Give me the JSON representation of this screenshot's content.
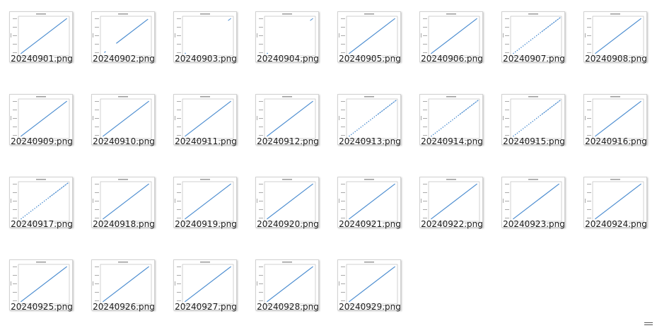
{
  "files": [
    {
      "name": "20240901.png",
      "pattern": "full"
    },
    {
      "name": "20240902.png",
      "pattern": "gap"
    },
    {
      "name": "20240903.png",
      "pattern": "sparse"
    },
    {
      "name": "20240904.png",
      "pattern": "sparse"
    },
    {
      "name": "20240905.png",
      "pattern": "full"
    },
    {
      "name": "20240906.png",
      "pattern": "full"
    },
    {
      "name": "20240907.png",
      "pattern": "dotted"
    },
    {
      "name": "20240908.png",
      "pattern": "full"
    },
    {
      "name": "20240909.png",
      "pattern": "full"
    },
    {
      "name": "20240910.png",
      "pattern": "full"
    },
    {
      "name": "20240911.png",
      "pattern": "full"
    },
    {
      "name": "20240912.png",
      "pattern": "full"
    },
    {
      "name": "20240913.png",
      "pattern": "dotted"
    },
    {
      "name": "20240914.png",
      "pattern": "dotted"
    },
    {
      "name": "20240915.png",
      "pattern": "dotted"
    },
    {
      "name": "20240916.png",
      "pattern": "full"
    },
    {
      "name": "20240917.png",
      "pattern": "dotted"
    },
    {
      "name": "20240918.png",
      "pattern": "full"
    },
    {
      "name": "20240919.png",
      "pattern": "full"
    },
    {
      "name": "20240920.png",
      "pattern": "full"
    },
    {
      "name": "20240921.png",
      "pattern": "full"
    },
    {
      "name": "20240922.png",
      "pattern": "full"
    },
    {
      "name": "20240923.png",
      "pattern": "full"
    },
    {
      "name": "20240924.png",
      "pattern": "full"
    },
    {
      "name": "20240925.png",
      "pattern": "full"
    },
    {
      "name": "20240926.png",
      "pattern": "full"
    },
    {
      "name": "20240927.png",
      "pattern": "full"
    },
    {
      "name": "20240928.png",
      "pattern": "full"
    },
    {
      "name": "20240929.png",
      "pattern": "full"
    }
  ],
  "colors": {
    "plot_line": "#4c8dd0",
    "label_text": "#1a1a1a",
    "thumb_border": "#d2d2d2",
    "background": "#ffffff"
  },
  "icons": {
    "thumbnail": "scatter-plot-thumbnail-icon",
    "view_toggle": "resize-grip-icon"
  }
}
